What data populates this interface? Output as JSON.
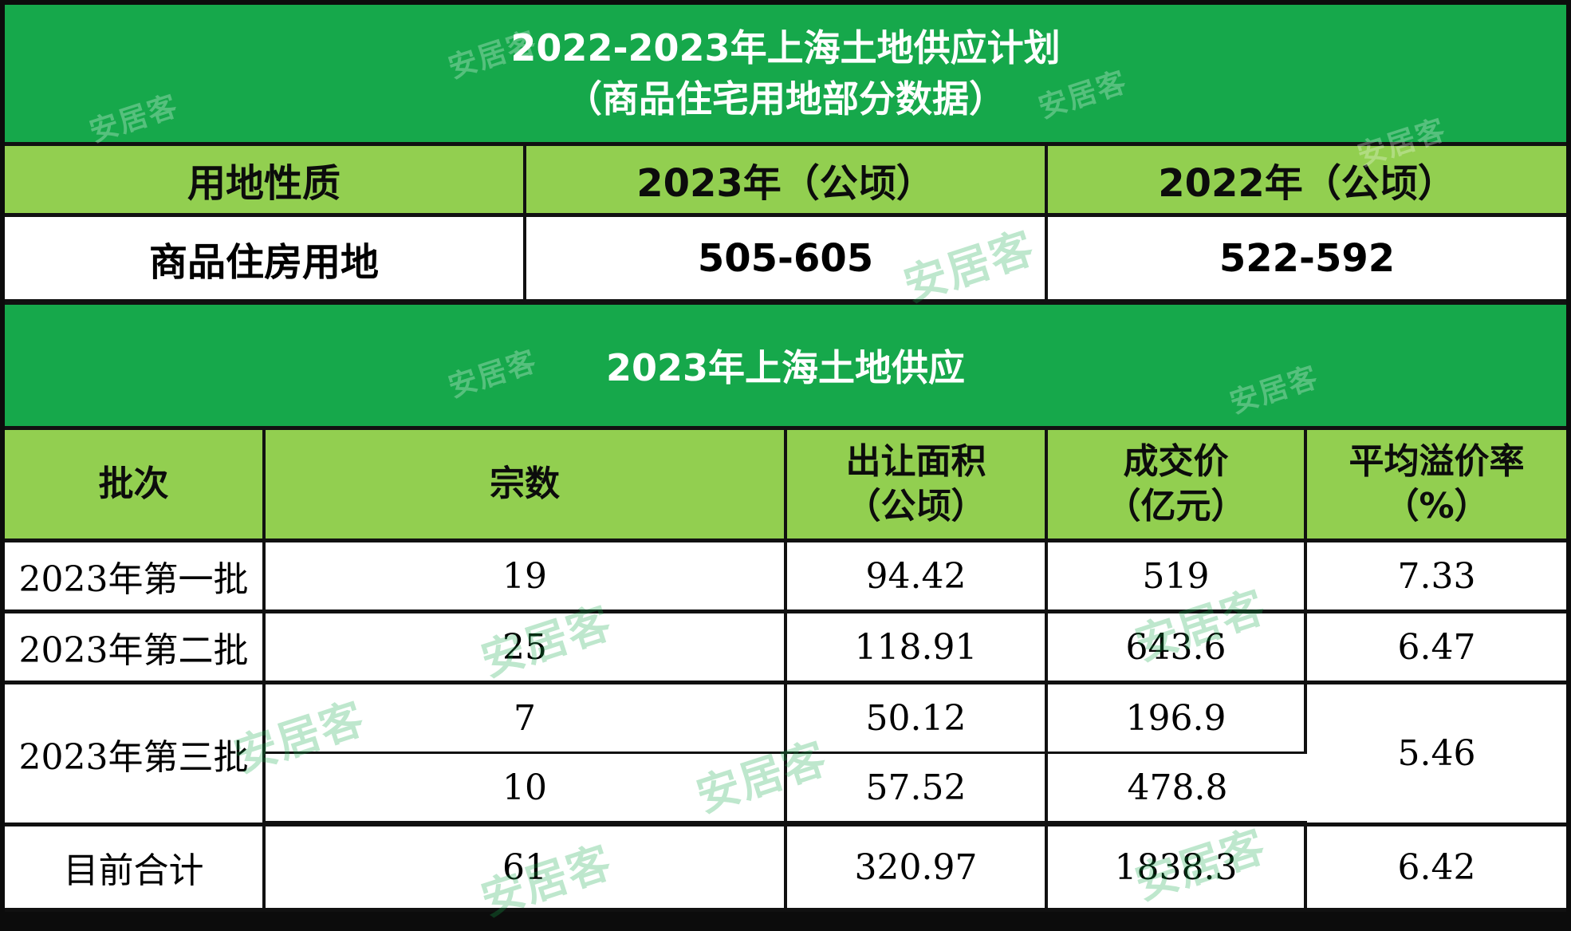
{
  "title": {
    "line1": "2022-2023年上海土地供应计划",
    "line2": "（商品住宅用地部分数据）"
  },
  "plan": {
    "headers": [
      "用地性质",
      "2023年（公顷）",
      "2022年（公顷）"
    ],
    "row": [
      "商品住房用地",
      "505-605",
      "522-592"
    ]
  },
  "supply_title": "2023年上海土地供应",
  "supply": {
    "headers": {
      "batch": "批次",
      "count": "宗数",
      "area_line1": "出让面积",
      "area_line2": "（公顷）",
      "price_line1": "成交价",
      "price_line2": "（亿元）",
      "premium_line1": "平均溢价率",
      "premium_line2": "（%）"
    },
    "rows": [
      {
        "batch": "2023年第一批",
        "count": "19",
        "area": "94.42",
        "price": "519",
        "premium": "7.33"
      },
      {
        "batch": "2023年第二批",
        "count": "25",
        "area": "118.91",
        "price": "643.6",
        "premium": "6.47"
      },
      {
        "batch": "2023年第三批",
        "count": "7",
        "area": "50.12",
        "price": "196.9",
        "premium": "5.46"
      },
      {
        "count": "10",
        "area": "57.52",
        "price": "478.8"
      },
      {
        "batch": "目前合计",
        "count": "61",
        "area": "320.97",
        "price": "1838.3",
        "premium": "6.42"
      }
    ]
  },
  "watermark": "安居客",
  "colors": {
    "dark_green": "#16a84b",
    "light_green": "#92cf50",
    "border": "#111111"
  }
}
